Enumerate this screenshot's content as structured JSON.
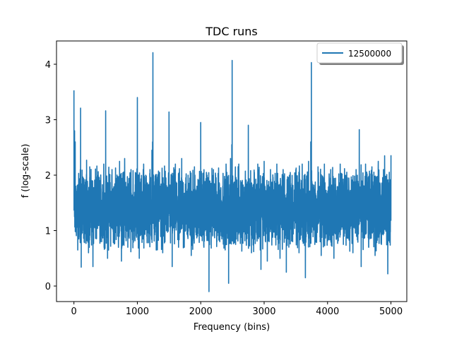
{
  "chart_data": {
    "type": "line",
    "title": "TDC runs",
    "xlabel": "Frequency (bins)",
    "ylabel": "f (log-scale)",
    "xlim": [
      -275,
      5250
    ],
    "ylim": [
      -0.28,
      4.42
    ],
    "xticks": [
      0,
      1000,
      2000,
      3000,
      4000,
      5000
    ],
    "yticks": [
      0,
      1,
      2,
      3,
      4
    ],
    "grid": false,
    "legend_position": "top-right",
    "series": [
      {
        "name": "12500000",
        "color": "#1f77b4",
        "baseline": 1.5,
        "noise_range": [
          0.6,
          2.2
        ],
        "points": [
          [
            0,
            3.53
          ],
          [
            10,
            2.8
          ],
          [
            20,
            2.6
          ],
          [
            30,
            1.8
          ],
          [
            50,
            1.2
          ],
          [
            60,
            0.65
          ],
          [
            100,
            2.1
          ],
          [
            105,
            3.21
          ],
          [
            115,
            0.34
          ],
          [
            150,
            1.0
          ],
          [
            200,
            2.27
          ],
          [
            230,
            0.6
          ],
          [
            250,
            2.15
          ],
          [
            300,
            0.35
          ],
          [
            330,
            1.05
          ],
          [
            380,
            2.0
          ],
          [
            420,
            0.9
          ],
          [
            470,
            2.2
          ],
          [
            500,
            3.16
          ],
          [
            530,
            0.5
          ],
          [
            600,
            2.1
          ],
          [
            660,
            1.0
          ],
          [
            720,
            2.25
          ],
          [
            750,
            0.45
          ],
          [
            800,
            2.3
          ],
          [
            850,
            0.7
          ],
          [
            900,
            2.1
          ],
          [
            950,
            1.0
          ],
          [
            1000,
            3.4
          ],
          [
            1030,
            0.5
          ],
          [
            1100,
            2.2
          ],
          [
            1150,
            0.9
          ],
          [
            1200,
            2.1
          ],
          [
            1230,
            2.45
          ],
          [
            1240,
            2.6
          ],
          [
            1245,
            4.21
          ],
          [
            1255,
            1.4
          ],
          [
            1300,
            0.65
          ],
          [
            1350,
            2.05
          ],
          [
            1400,
            0.6
          ],
          [
            1450,
            1.95
          ],
          [
            1500,
            3.14
          ],
          [
            1550,
            0.35
          ],
          [
            1600,
            2.2
          ],
          [
            1650,
            0.7
          ],
          [
            1700,
            2.3
          ],
          [
            1750,
            1.0
          ],
          [
            1800,
            2.0
          ],
          [
            1850,
            0.55
          ],
          [
            1900,
            2.15
          ],
          [
            1950,
            0.9
          ],
          [
            2000,
            2.95
          ],
          [
            2050,
            0.7
          ],
          [
            2100,
            2.0
          ],
          [
            2130,
            -0.1
          ],
          [
            2200,
            2.1
          ],
          [
            2300,
            0.8
          ],
          [
            2400,
            2.2
          ],
          [
            2440,
            0.05
          ],
          [
            2470,
            2.3
          ],
          [
            2490,
            2.55
          ],
          [
            2495,
            4.07
          ],
          [
            2510,
            1.4
          ],
          [
            2550,
            0.75
          ],
          [
            2600,
            2.2
          ],
          [
            2700,
            0.95
          ],
          [
            2750,
            2.9
          ],
          [
            2800,
            0.6
          ],
          [
            2900,
            2.2
          ],
          [
            2950,
            0.3
          ],
          [
            3000,
            2.25
          ],
          [
            3050,
            0.45
          ],
          [
            3100,
            2.1
          ],
          [
            3150,
            1.0
          ],
          [
            3200,
            2.2
          ],
          [
            3250,
            0.5
          ],
          [
            3300,
            2.1
          ],
          [
            3350,
            0.25
          ],
          [
            3400,
            2.0
          ],
          [
            3450,
            0.8
          ],
          [
            3500,
            2.1
          ],
          [
            3550,
            0.6
          ],
          [
            3600,
            2.2
          ],
          [
            3650,
            0.15
          ],
          [
            3700,
            2.25
          ],
          [
            3735,
            2.6
          ],
          [
            3745,
            4.03
          ],
          [
            3760,
            1.4
          ],
          [
            3800,
            0.75
          ],
          [
            3850,
            2.15
          ],
          [
            3900,
            0.55
          ],
          [
            3950,
            2.2
          ],
          [
            4000,
            0.95
          ],
          [
            4050,
            2.1
          ],
          [
            4100,
            0.5
          ],
          [
            4200,
            2.2
          ],
          [
            4250,
            0.75
          ],
          [
            4300,
            1.75
          ],
          [
            4400,
            0.6
          ],
          [
            4450,
            2.1
          ],
          [
            4500,
            2.82
          ],
          [
            4530,
            0.35
          ],
          [
            4600,
            2.2
          ],
          [
            4650,
            0.7
          ],
          [
            4700,
            2.15
          ],
          [
            4750,
            0.55
          ],
          [
            4800,
            2.25
          ],
          [
            4850,
            0.75
          ],
          [
            4900,
            2.35
          ],
          [
            4950,
            0.22
          ],
          [
            5000,
            2.36
          ]
        ]
      }
    ]
  }
}
